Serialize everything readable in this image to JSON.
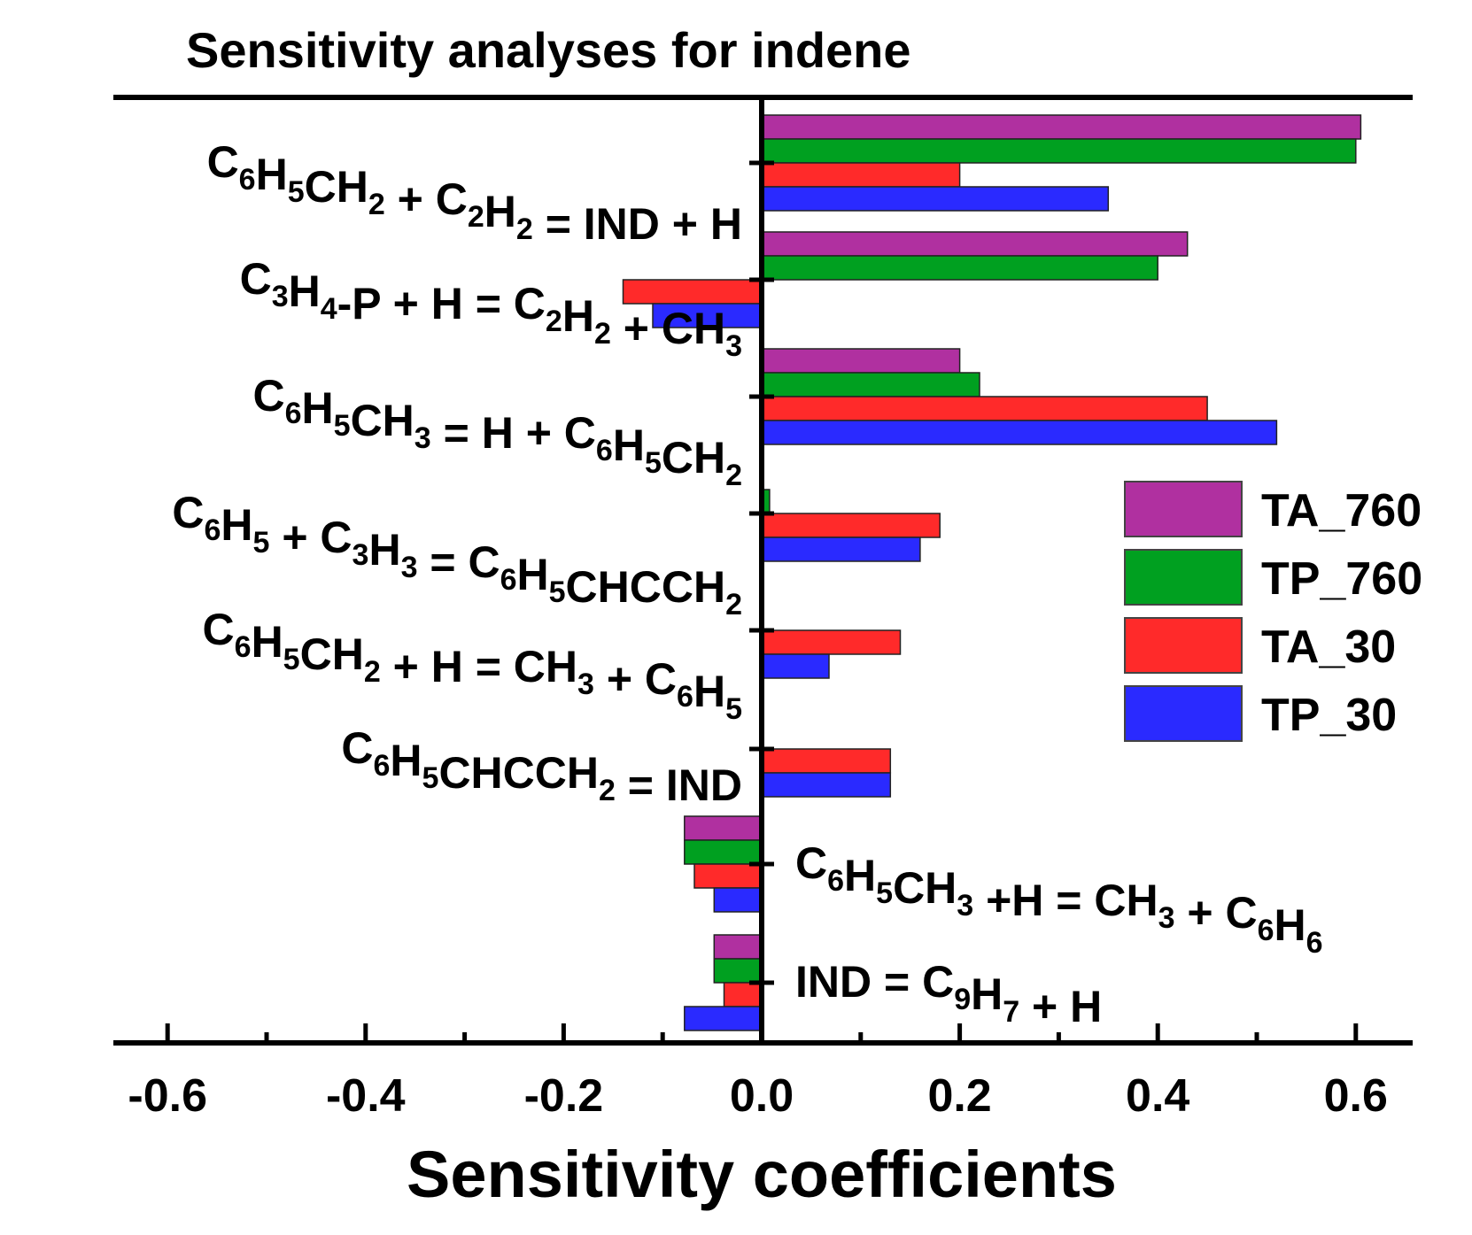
{
  "chart_data": {
    "type": "bar",
    "orientation": "horizontal",
    "title": "Sensitivity analyses for indene",
    "xlabel": "Sensitivity coefficients",
    "ylabel": "",
    "xlim": [
      -0.65,
      0.66
    ],
    "xticks": [
      -0.6,
      -0.4,
      -0.2,
      0.0,
      0.2,
      0.4,
      0.6
    ],
    "xtick_labels": [
      "-0.6",
      "-0.4",
      "-0.2",
      "0.0",
      "0.2",
      "0.4",
      "0.6"
    ],
    "grid": false,
    "legend_position": "right",
    "categories": [
      {
        "label": "C6H5CH2 + C2H2 = IND + H",
        "side": "left",
        "parts": [
          [
            "C",
            ""
          ],
          [
            "6",
            "sub"
          ],
          [
            "H",
            ""
          ],
          [
            "5",
            "sub"
          ],
          [
            "CH",
            ""
          ],
          [
            "2",
            "sub"
          ],
          [
            " + C",
            ""
          ],
          [
            "2",
            "sub"
          ],
          [
            "H",
            ""
          ],
          [
            "2",
            "sub"
          ],
          [
            " = IND + H",
            ""
          ]
        ]
      },
      {
        "label": "C3H4-P + H = C2H2 + CH3",
        "side": "left",
        "parts": [
          [
            "C",
            ""
          ],
          [
            "3",
            "sub"
          ],
          [
            "H",
            ""
          ],
          [
            "4",
            "sub"
          ],
          [
            "-P + H = C",
            ""
          ],
          [
            "2",
            "sub"
          ],
          [
            "H",
            ""
          ],
          [
            "2",
            "sub"
          ],
          [
            " + CH",
            ""
          ],
          [
            "3",
            "sub"
          ]
        ]
      },
      {
        "label": "C6H5CH3 = H + C6H5CH2",
        "side": "left",
        "parts": [
          [
            "C",
            ""
          ],
          [
            "6",
            "sub"
          ],
          [
            "H",
            ""
          ],
          [
            "5",
            "sub"
          ],
          [
            "CH",
            ""
          ],
          [
            "3",
            "sub"
          ],
          [
            " = H + C",
            ""
          ],
          [
            "6",
            "sub"
          ],
          [
            "H",
            ""
          ],
          [
            "5",
            "sub"
          ],
          [
            "CH",
            ""
          ],
          [
            "2",
            "sub"
          ]
        ]
      },
      {
        "label": "C6H5 + C3H3 = C6H5CHCCH2",
        "side": "left",
        "parts": [
          [
            "C",
            ""
          ],
          [
            "6",
            "sub"
          ],
          [
            "H",
            ""
          ],
          [
            "5",
            "sub"
          ],
          [
            " + C",
            ""
          ],
          [
            "3",
            "sub"
          ],
          [
            "H",
            ""
          ],
          [
            "3",
            "sub"
          ],
          [
            " = C",
            ""
          ],
          [
            "6",
            "sub"
          ],
          [
            "H",
            ""
          ],
          [
            "5",
            "sub"
          ],
          [
            "CHCCH",
            ""
          ],
          [
            "2",
            "sub"
          ]
        ]
      },
      {
        "label": "C6H5CH2 + H = CH3 + C6H5",
        "side": "left",
        "parts": [
          [
            "C",
            ""
          ],
          [
            "6",
            "sub"
          ],
          [
            "H",
            ""
          ],
          [
            "5",
            "sub"
          ],
          [
            "CH",
            ""
          ],
          [
            "2",
            "sub"
          ],
          [
            " + H = CH",
            ""
          ],
          [
            "3",
            "sub"
          ],
          [
            " + C",
            ""
          ],
          [
            "6",
            "sub"
          ],
          [
            "H",
            ""
          ],
          [
            "5",
            "sub"
          ]
        ]
      },
      {
        "label": "C6H5CHCCH2 = IND",
        "side": "left",
        "parts": [
          [
            "C",
            ""
          ],
          [
            "6",
            "sub"
          ],
          [
            "H",
            ""
          ],
          [
            "5",
            "sub"
          ],
          [
            "CHCCH",
            ""
          ],
          [
            "2",
            "sub"
          ],
          [
            " = IND",
            ""
          ]
        ]
      },
      {
        "label": "C6H5CH3 +H = CH3 + C6H6",
        "side": "right",
        "parts": [
          [
            "C",
            ""
          ],
          [
            "6",
            "sub"
          ],
          [
            "H",
            ""
          ],
          [
            "5",
            "sub"
          ],
          [
            "CH",
            ""
          ],
          [
            "3",
            "sub"
          ],
          [
            " +H = CH",
            ""
          ],
          [
            "3",
            "sub"
          ],
          [
            " + C",
            ""
          ],
          [
            "6",
            "sub"
          ],
          [
            "H",
            ""
          ],
          [
            "6",
            "sub"
          ]
        ]
      },
      {
        "label": "IND = C9H7 + H",
        "side": "right",
        "parts": [
          [
            "IND = C",
            ""
          ],
          [
            "9",
            "sub"
          ],
          [
            "H",
            ""
          ],
          [
            "7",
            "sub"
          ],
          [
            " + H",
            ""
          ]
        ]
      }
    ],
    "series": [
      {
        "name": "TA_760",
        "color": "#b030a0",
        "values": [
          0.605,
          0.43,
          0.2,
          0.0,
          0.0,
          0.0,
          -0.078,
          -0.048
        ]
      },
      {
        "name": "TP_760",
        "color": "#00a020",
        "values": [
          0.6,
          0.4,
          0.22,
          0.008,
          0.0,
          0.0,
          -0.078,
          -0.048
        ]
      },
      {
        "name": "TA_30",
        "color": "#ff2a2a",
        "values": [
          0.2,
          -0.14,
          0.45,
          0.18,
          0.14,
          0.13,
          -0.068,
          -0.038
        ]
      },
      {
        "name": "TP_30",
        "color": "#2a2aff",
        "values": [
          0.35,
          -0.11,
          0.52,
          0.16,
          0.068,
          0.13,
          -0.048,
          -0.078
        ]
      }
    ]
  }
}
